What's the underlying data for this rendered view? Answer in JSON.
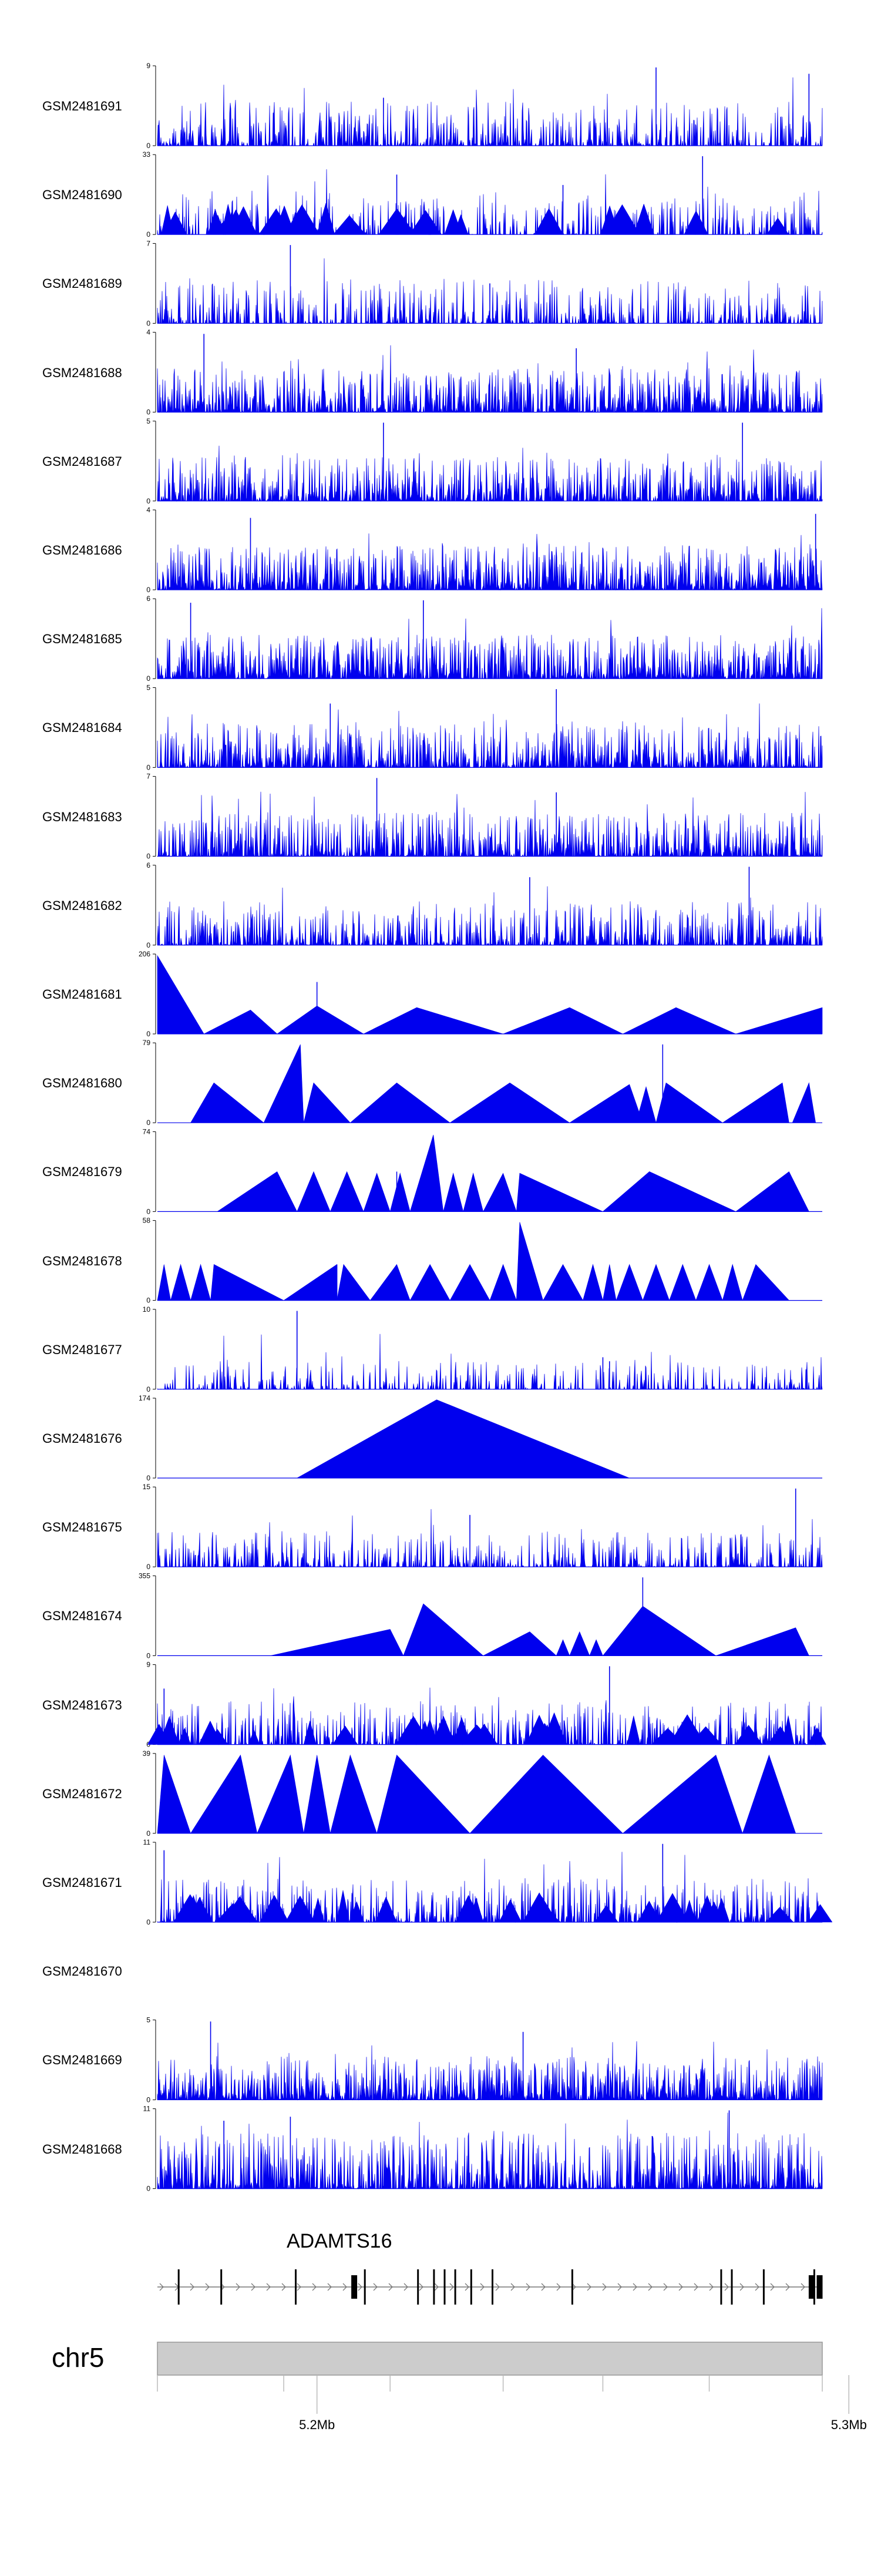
{
  "chart_data": {
    "type": "area",
    "title": "",
    "chromosome": "chr5",
    "region_mb": [
      5.17,
      5.295
    ],
    "gene": {
      "name": "ADAMTS16",
      "strand": "+",
      "start_mb": 5.17,
      "end_mb": 5.295
    },
    "axis_ticks": [
      {
        "mb": 5.2,
        "label": "5.2Mb"
      },
      {
        "mb": 5.3,
        "label": "5.3Mb"
      }
    ],
    "exon_positions_mb": [
      5.174,
      5.182,
      5.196,
      5.207,
      5.209,
      5.219,
      5.222,
      5.224,
      5.226,
      5.229,
      5.233,
      5.248,
      5.276,
      5.278,
      5.284,
      5.293,
      5.2935,
      5.2945
    ],
    "color": "#0000EE",
    "tracks": [
      {
        "name": "GSM2481691",
        "ymax": "9",
        "ymin": "0",
        "style": "dense",
        "seed": 11,
        "density": 0.55,
        "peaks": [
          [
            0.75,
            0.98
          ],
          [
            0.98,
            0.9
          ],
          [
            0.34,
            0.6
          ]
        ]
      },
      {
        "name": "GSM2481690",
        "ymax": "33",
        "ymin": "0",
        "style": "mixed",
        "seed": 23,
        "density": 0.35,
        "peaks": [
          [
            0.82,
            0.98
          ],
          [
            0.61,
            0.62
          ],
          [
            0.36,
            0.75
          ]
        ]
      },
      {
        "name": "GSM2481689",
        "ymax": "7",
        "ymin": "0",
        "style": "dense",
        "seed": 37,
        "density": 0.45,
        "peaks": [
          [
            0.2,
            0.98
          ],
          [
            0.5,
            0.5
          ]
        ]
      },
      {
        "name": "GSM2481688",
        "ymax": "4",
        "ymin": "0",
        "style": "dense",
        "seed": 41,
        "density": 0.8,
        "peaks": [
          [
            0.07,
            0.98
          ],
          [
            0.63,
            0.8
          ]
        ]
      },
      {
        "name": "GSM2481687",
        "ymax": "5",
        "ymin": "0",
        "style": "dense",
        "seed": 53,
        "density": 0.7,
        "peaks": [
          [
            0.34,
            0.98
          ],
          [
            0.88,
            0.98
          ]
        ]
      },
      {
        "name": "GSM2481686",
        "ymax": "4",
        "ymin": "0",
        "style": "dense",
        "seed": 61,
        "density": 0.85,
        "peaks": [
          [
            0.99,
            0.95
          ],
          [
            0.14,
            0.9
          ]
        ]
      },
      {
        "name": "GSM2481685",
        "ymax": "6",
        "ymin": "0",
        "style": "dense",
        "seed": 71,
        "density": 0.85,
        "peaks": [
          [
            0.4,
            0.98
          ],
          [
            0.05,
            0.95
          ]
        ]
      },
      {
        "name": "GSM2481684",
        "ymax": "5",
        "ymin": "0",
        "style": "dense",
        "seed": 83,
        "density": 0.7,
        "peaks": [
          [
            0.6,
            0.98
          ],
          [
            0.26,
            0.8
          ]
        ]
      },
      {
        "name": "GSM2481683",
        "ymax": "7",
        "ymin": "0",
        "style": "dense",
        "seed": 97,
        "density": 0.7,
        "peaks": [
          [
            0.33,
            0.98
          ],
          [
            0.6,
            0.8
          ]
        ]
      },
      {
        "name": "GSM2481682",
        "ymax": "6",
        "ymin": "0",
        "style": "dense",
        "seed": 101,
        "density": 0.6,
        "peaks": [
          [
            0.89,
            0.98
          ],
          [
            0.56,
            0.85
          ]
        ]
      },
      {
        "name": "GSM2481681",
        "ymax": "206",
        "ymin": "0",
        "style": "triangles",
        "tris": [
          [
            0.0,
            0.07,
            0.98,
            0.0
          ],
          [
            0.07,
            0.18,
            0.3,
            0.14
          ],
          [
            0.18,
            0.31,
            0.35,
            0.24
          ],
          [
            0.31,
            0.52,
            0.33,
            0.39
          ],
          [
            0.52,
            0.7,
            0.33,
            0.62
          ],
          [
            0.7,
            0.87,
            0.33,
            0.78
          ],
          [
            0.87,
            1.0,
            0.33,
            1.0
          ]
        ],
        "spikes": [
          [
            0.24,
            0.65
          ]
        ]
      },
      {
        "name": "GSM2481680",
        "ymax": "79",
        "ymin": "0",
        "style": "triangles",
        "tris": [
          [
            0.05,
            0.16,
            0.5,
            0.085
          ],
          [
            0.16,
            0.22,
            0.98,
            0.215
          ],
          [
            0.22,
            0.29,
            0.5,
            0.235
          ],
          [
            0.29,
            0.44,
            0.5,
            0.36
          ],
          [
            0.44,
            0.62,
            0.5,
            0.53
          ],
          [
            0.62,
            0.73,
            0.48,
            0.71
          ],
          [
            0.72,
            0.75,
            0.45,
            0.735
          ],
          [
            0.75,
            0.85,
            0.5,
            0.765
          ],
          [
            0.85,
            0.95,
            0.5,
            0.94
          ],
          [
            0.955,
            0.99,
            0.5,
            0.98
          ]
        ],
        "spikes": [
          [
            0.76,
            0.98
          ]
        ]
      },
      {
        "name": "GSM2481679",
        "ymax": "74",
        "ymin": "0",
        "style": "triangles",
        "tris": [
          [
            0.09,
            0.21,
            0.5,
            0.18
          ],
          [
            0.21,
            0.26,
            0.5,
            0.235
          ],
          [
            0.26,
            0.31,
            0.5,
            0.285
          ],
          [
            0.31,
            0.35,
            0.48,
            0.33
          ],
          [
            0.35,
            0.38,
            0.48,
            0.365
          ],
          [
            0.38,
            0.43,
            0.96,
            0.415
          ],
          [
            0.43,
            0.46,
            0.48,
            0.445
          ],
          [
            0.46,
            0.49,
            0.48,
            0.475
          ],
          [
            0.49,
            0.54,
            0.48,
            0.52
          ],
          [
            0.54,
            0.67,
            0.48,
            0.545
          ],
          [
            0.67,
            0.87,
            0.5,
            0.74
          ],
          [
            0.87,
            0.98,
            0.5,
            0.95
          ]
        ],
        "spikes": [
          [
            0.36,
            0.5
          ]
        ]
      },
      {
        "name": "GSM2481678",
        "ymax": "58",
        "ymin": "0",
        "style": "triangles",
        "tris": [
          [
            0.0,
            0.02,
            0.45,
            0.01
          ],
          [
            0.02,
            0.05,
            0.45,
            0.035
          ],
          [
            0.05,
            0.08,
            0.45,
            0.065
          ],
          [
            0.08,
            0.19,
            0.45,
            0.085
          ],
          [
            0.19,
            0.27,
            0.45,
            0.27
          ],
          [
            0.27,
            0.32,
            0.45,
            0.28
          ],
          [
            0.32,
            0.38,
            0.45,
            0.36
          ],
          [
            0.38,
            0.44,
            0.45,
            0.41
          ],
          [
            0.44,
            0.5,
            0.45,
            0.47
          ],
          [
            0.5,
            0.54,
            0.45,
            0.52
          ],
          [
            0.54,
            0.58,
            0.98,
            0.545
          ],
          [
            0.58,
            0.64,
            0.45,
            0.61
          ],
          [
            0.64,
            0.67,
            0.45,
            0.655
          ],
          [
            0.67,
            0.69,
            0.45,
            0.68
          ],
          [
            0.69,
            0.73,
            0.45,
            0.71
          ],
          [
            0.73,
            0.77,
            0.45,
            0.75
          ],
          [
            0.77,
            0.81,
            0.45,
            0.79
          ],
          [
            0.81,
            0.85,
            0.45,
            0.83
          ],
          [
            0.85,
            0.88,
            0.45,
            0.865
          ],
          [
            0.88,
            0.95,
            0.45,
            0.9
          ]
        ],
        "spikes": [
          [
            0.27,
            0.45
          ]
        ]
      },
      {
        "name": "GSM2481677",
        "ymax": "10",
        "ymin": "0",
        "style": "dense",
        "seed": 131,
        "density": 0.35,
        "scale": 0.35,
        "peaks": [
          [
            0.21,
            0.98
          ],
          [
            0.67,
            0.4
          ],
          [
            0.68,
            0.35
          ]
        ]
      },
      {
        "name": "GSM2481676",
        "ymax": "174",
        "ymin": "0",
        "style": "triangles",
        "tris": [
          [
            0.21,
            0.71,
            0.98,
            0.42
          ]
        ],
        "spikes": []
      },
      {
        "name": "GSM2481675",
        "ymax": "15",
        "ymin": "0",
        "style": "dense",
        "seed": 151,
        "density": 0.45,
        "scale": 0.45,
        "peaks": [
          [
            0.96,
            0.98
          ],
          [
            0.47,
            0.65
          ]
        ]
      },
      {
        "name": "GSM2481674",
        "ymax": "355",
        "ymin": "0",
        "style": "triangles",
        "tris": [
          [
            0.17,
            0.37,
            0.33,
            0.35
          ],
          [
            0.37,
            0.49,
            0.65,
            0.4
          ],
          [
            0.49,
            0.6,
            0.3,
            0.56
          ],
          [
            0.6,
            0.62,
            0.2,
            0.61
          ],
          [
            0.62,
            0.65,
            0.3,
            0.635
          ],
          [
            0.65,
            0.67,
            0.2,
            0.66
          ],
          [
            0.67,
            0.84,
            0.62,
            0.73
          ],
          [
            0.84,
            0.98,
            0.35,
            0.96
          ]
        ],
        "spikes": [
          [
            0.73,
            0.98
          ]
        ]
      },
      {
        "name": "GSM2481673",
        "ymax": "9",
        "ymin": "0",
        "style": "mixed",
        "seed": 173,
        "density": 0.5,
        "peaks": [
          [
            0.68,
            0.98
          ],
          [
            0.01,
            0.7
          ]
        ]
      },
      {
        "name": "GSM2481672",
        "ymax": "39",
        "ymin": "0",
        "style": "triangles",
        "tris": [
          [
            0.0,
            0.05,
            0.98,
            0.01
          ],
          [
            0.05,
            0.15,
            0.98,
            0.125
          ],
          [
            0.15,
            0.22,
            0.98,
            0.2
          ],
          [
            0.22,
            0.26,
            0.98,
            0.24
          ],
          [
            0.26,
            0.33,
            0.98,
            0.29
          ],
          [
            0.33,
            0.47,
            0.98,
            0.36
          ],
          [
            0.47,
            0.7,
            0.98,
            0.58
          ],
          [
            0.7,
            0.88,
            0.98,
            0.84
          ],
          [
            0.88,
            0.96,
            0.98,
            0.92
          ]
        ],
        "spikes": [
          [
            0.93,
            0.6
          ]
        ]
      },
      {
        "name": "GSM2481671",
        "ymax": "11",
        "ymin": "0",
        "style": "mixed",
        "seed": 197,
        "density": 0.55,
        "peaks": [
          [
            0.76,
            0.98
          ],
          [
            0.01,
            0.9
          ]
        ]
      },
      {
        "name": "GSM2481670",
        "ymax": "",
        "ymin": "",
        "style": "empty"
      },
      {
        "name": "GSM2481669",
        "ymax": "5",
        "ymin": "0",
        "style": "dense",
        "seed": 211,
        "density": 0.85,
        "peaks": [
          [
            0.08,
            0.98
          ],
          [
            0.55,
            0.85
          ]
        ]
      },
      {
        "name": "GSM2481668",
        "ymax": "11",
        "ymin": "0",
        "style": "dense",
        "seed": 223,
        "density": 0.75,
        "scale": 0.7,
        "peaks": [
          [
            0.86,
            0.98
          ],
          [
            0.2,
            0.9
          ],
          [
            0.1,
            0.85
          ]
        ]
      }
    ]
  }
}
